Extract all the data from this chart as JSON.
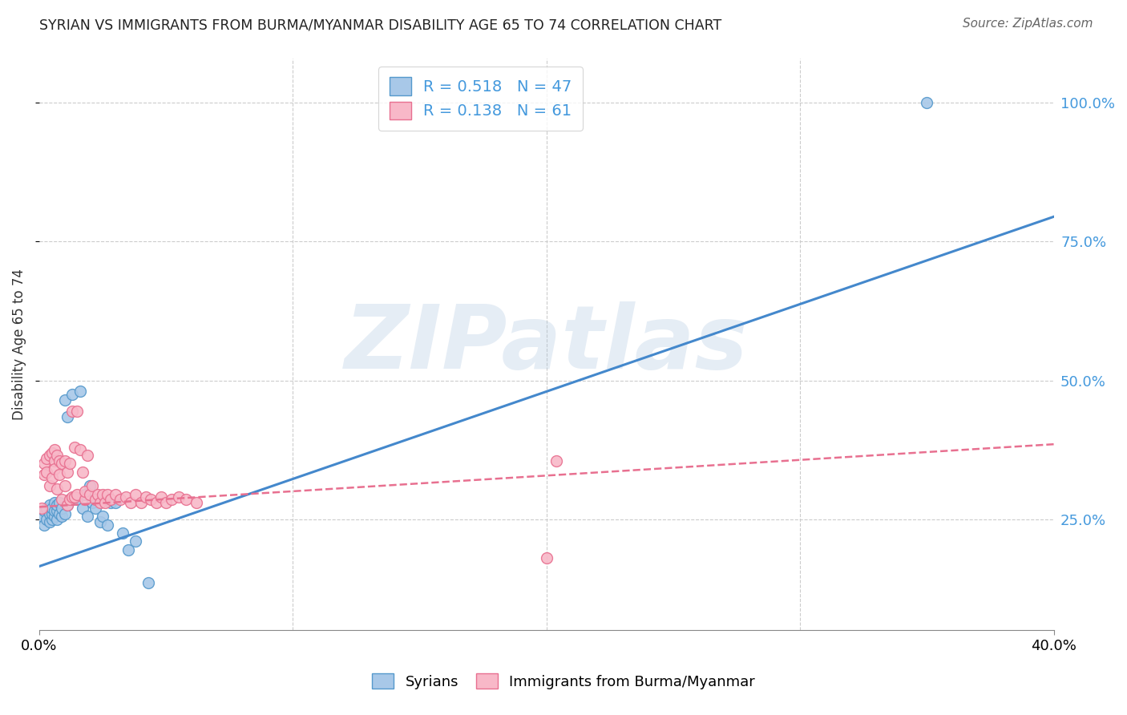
{
  "title": "SYRIAN VS IMMIGRANTS FROM BURMA/MYANMAR DISABILITY AGE 65 TO 74 CORRELATION CHART",
  "source": "Source: ZipAtlas.com",
  "ylabel": "Disability Age 65 to 74",
  "watermark": "ZIPatlas",
  "legend_r1": "0.518",
  "legend_n1": "47",
  "legend_r2": "0.138",
  "legend_n2": "61",
  "legend_label1": "Syrians",
  "legend_label2": "Immigrants from Burma/Myanmar",
  "color_blue_fill": "#a8c8e8",
  "color_pink_fill": "#f8b8c8",
  "color_blue_edge": "#5599cc",
  "color_pink_edge": "#e87090",
  "color_blue_line": "#4488cc",
  "color_pink_line": "#e87090",
  "color_text_blue": "#4499dd",
  "xmin": 0.0,
  "xmax": 0.4,
  "ymin": 0.05,
  "ymax": 1.08,
  "ytick_vals": [
    0.25,
    0.5,
    0.75,
    1.0
  ],
  "ytick_labels": [
    "25.0%",
    "50.0%",
    "75.0%",
    "100.0%"
  ],
  "syrian_line_x": [
    0.0,
    0.4
  ],
  "syrian_line_y": [
    0.165,
    0.795
  ],
  "burma_line_x": [
    0.0,
    0.4
  ],
  "burma_line_y": [
    0.272,
    0.385
  ],
  "background_color": "#ffffff",
  "grid_color": "#cccccc",
  "syrians_x": [
    0.001,
    0.002,
    0.002,
    0.003,
    0.003,
    0.004,
    0.004,
    0.004,
    0.005,
    0.005,
    0.005,
    0.006,
    0.006,
    0.006,
    0.007,
    0.007,
    0.007,
    0.008,
    0.008,
    0.009,
    0.009,
    0.01,
    0.01,
    0.011,
    0.011,
    0.012,
    0.013,
    0.014,
    0.015,
    0.016,
    0.017,
    0.018,
    0.019,
    0.02,
    0.021,
    0.022,
    0.023,
    0.024,
    0.025,
    0.027,
    0.028,
    0.03,
    0.033,
    0.035,
    0.038,
    0.043,
    0.35
  ],
  "syrians_y": [
    0.255,
    0.24,
    0.265,
    0.25,
    0.27,
    0.245,
    0.26,
    0.275,
    0.25,
    0.26,
    0.27,
    0.255,
    0.265,
    0.28,
    0.25,
    0.265,
    0.275,
    0.26,
    0.28,
    0.255,
    0.27,
    0.26,
    0.465,
    0.275,
    0.435,
    0.285,
    0.475,
    0.29,
    0.285,
    0.48,
    0.27,
    0.295,
    0.255,
    0.31,
    0.28,
    0.27,
    0.285,
    0.245,
    0.255,
    0.24,
    0.28,
    0.28,
    0.225,
    0.195,
    0.21,
    0.135,
    1.0
  ],
  "burma_x": [
    0.001,
    0.002,
    0.002,
    0.003,
    0.003,
    0.004,
    0.004,
    0.005,
    0.005,
    0.006,
    0.006,
    0.006,
    0.007,
    0.007,
    0.008,
    0.008,
    0.009,
    0.009,
    0.01,
    0.01,
    0.011,
    0.011,
    0.012,
    0.012,
    0.013,
    0.013,
    0.014,
    0.014,
    0.015,
    0.015,
    0.016,
    0.017,
    0.018,
    0.018,
    0.019,
    0.02,
    0.021,
    0.022,
    0.023,
    0.024,
    0.025,
    0.026,
    0.027,
    0.028,
    0.03,
    0.032,
    0.034,
    0.036,
    0.038,
    0.04,
    0.042,
    0.044,
    0.046,
    0.048,
    0.05,
    0.052,
    0.055,
    0.058,
    0.062,
    0.2,
    0.204
  ],
  "burma_y": [
    0.27,
    0.35,
    0.33,
    0.36,
    0.335,
    0.31,
    0.365,
    0.325,
    0.37,
    0.355,
    0.34,
    0.375,
    0.305,
    0.365,
    0.33,
    0.355,
    0.285,
    0.35,
    0.31,
    0.355,
    0.275,
    0.335,
    0.285,
    0.35,
    0.29,
    0.445,
    0.38,
    0.29,
    0.295,
    0.445,
    0.375,
    0.335,
    0.285,
    0.3,
    0.365,
    0.295,
    0.31,
    0.285,
    0.295,
    0.28,
    0.295,
    0.28,
    0.295,
    0.285,
    0.295,
    0.285,
    0.29,
    0.28,
    0.295,
    0.28,
    0.29,
    0.285,
    0.28,
    0.29,
    0.28,
    0.285,
    0.29,
    0.285,
    0.28,
    0.18,
    0.355
  ]
}
